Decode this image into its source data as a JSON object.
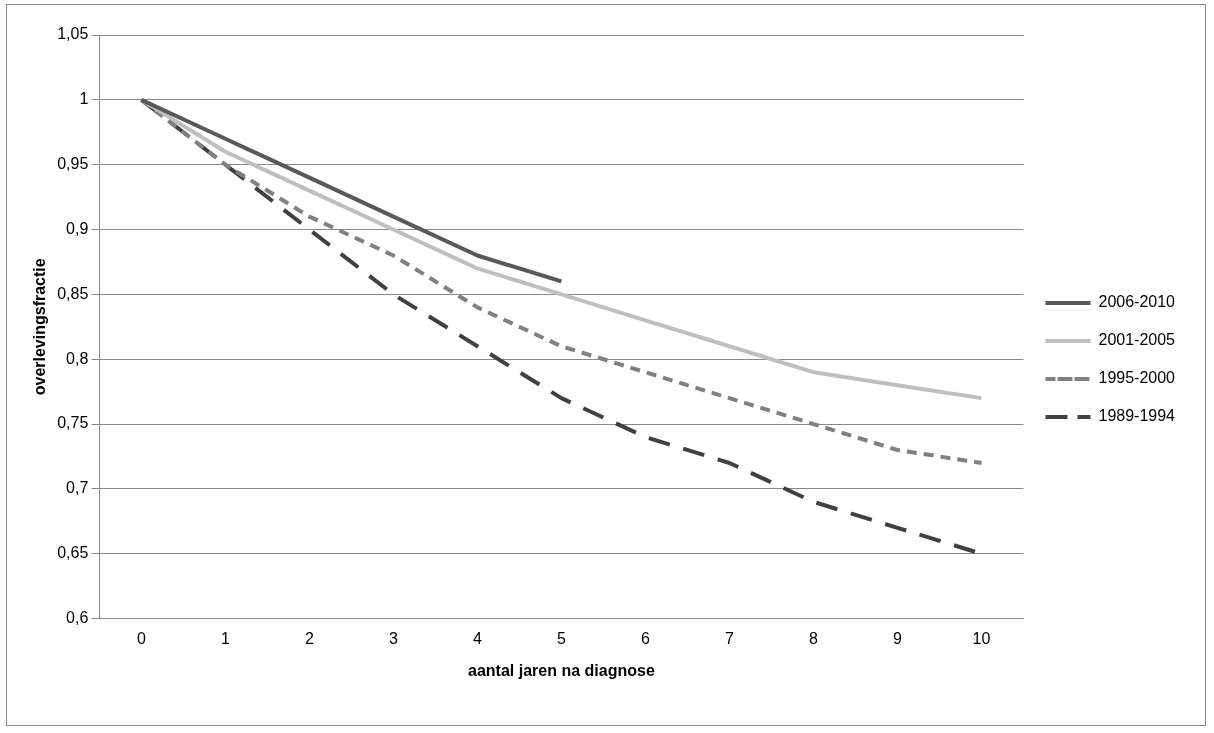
{
  "chart_data": {
    "type": "line",
    "xlabel": "aantal jaren na diagnose",
    "ylabel": "overlevingsfractie",
    "categories": [
      "0",
      "1",
      "2",
      "3",
      "4",
      "5",
      "6",
      "7",
      "8",
      "9",
      "10"
    ],
    "series": [
      {
        "name": "2006-2010",
        "color": "#595959",
        "line_style": "solid",
        "values": [
          1,
          0.97,
          0.94,
          0.91,
          0.88,
          0.86,
          null,
          null,
          null,
          null,
          null
        ]
      },
      {
        "name": "2001-2005",
        "color": "#bfbfbf",
        "line_style": "solid",
        "values": [
          1,
          0.96,
          0.93,
          0.9,
          0.87,
          0.85,
          0.83,
          0.81,
          0.79,
          0.78,
          0.77
        ]
      },
      {
        "name": "1995-2000",
        "color": "#808080",
        "line_style": "dashed",
        "values": [
          1,
          0.95,
          0.91,
          0.88,
          0.84,
          0.81,
          0.79,
          0.77,
          0.75,
          0.73,
          0.72
        ]
      },
      {
        "name": "1989-1994",
        "color": "#404040",
        "line_style": "dashed",
        "values": [
          1,
          0.95,
          0.9,
          0.85,
          0.81,
          0.77,
          0.74,
          0.72,
          0.69,
          0.67,
          0.65
        ]
      }
    ],
    "ylim": [
      0.6,
      1.05
    ],
    "yticks": [
      {
        "value": 0.6,
        "label": "0,6"
      },
      {
        "value": 0.65,
        "label": "0,65"
      },
      {
        "value": 0.7,
        "label": "0,7"
      },
      {
        "value": 0.75,
        "label": "0,75"
      },
      {
        "value": 0.8,
        "label": "0,8"
      },
      {
        "value": 0.85,
        "label": "0,85"
      },
      {
        "value": 0.9,
        "label": "0,9"
      },
      {
        "value": 0.95,
        "label": "0,95"
      },
      1,
      {
        "value": 1.05,
        "label": "1,05"
      }
    ],
    "grid": "y",
    "legend": "right",
    "marker": "none"
  }
}
